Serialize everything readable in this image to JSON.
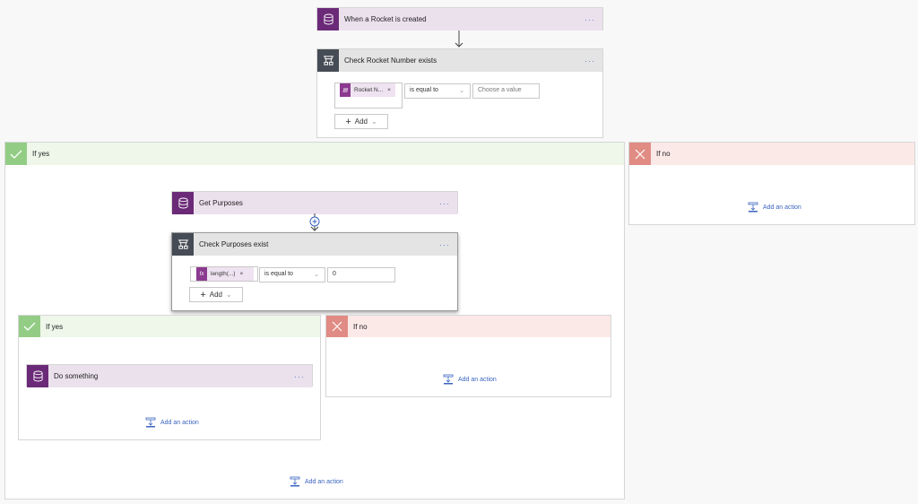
{
  "trigger": {
    "title": "When a Rocket is created",
    "more": "···"
  },
  "condition1": {
    "title": "Check Rocket Number exists",
    "more": "···",
    "token": "Rocket N...",
    "operator": "is equal to",
    "value_placeholder": "Choose a value",
    "add_label": "Add"
  },
  "branch_yes": {
    "label": "If yes",
    "add_action": "Add an action",
    "get_purposes": {
      "title": "Get Purposes",
      "more": "···"
    },
    "condition2": {
      "title": "Check Purposes exist",
      "more": "···",
      "token": "length(...)",
      "operator": "is equal to",
      "value": "0",
      "add_label": "Add"
    },
    "inner_yes": {
      "label": "If yes",
      "action": {
        "title": "Do something",
        "more": "···"
      },
      "add_action": "Add an action"
    },
    "inner_no": {
      "label": "If no",
      "add_action": "Add an action"
    }
  },
  "branch_no": {
    "label": "If no",
    "add_action": "Add an action"
  },
  "colors": {
    "dataverse": "#6b2a78",
    "condition": "#464c55",
    "yes": "#93cd85",
    "no": "#e08b83",
    "link": "#3a64c0"
  }
}
